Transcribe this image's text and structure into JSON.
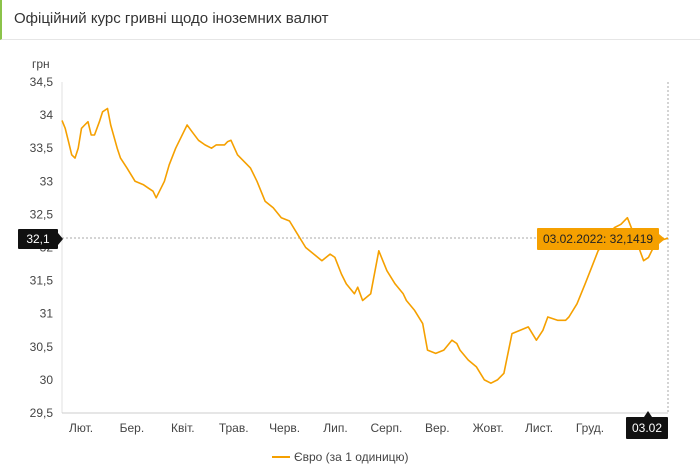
{
  "page": {
    "title": "Офіційний курс гривні щодо іноземних валют"
  },
  "chart_data": {
    "type": "line",
    "ylabel": "грн",
    "ylim": [
      29.5,
      34.5
    ],
    "y_ticks": [
      "29,5",
      "30",
      "30,5",
      "31",
      "31,5",
      "32",
      "32,5",
      "33",
      "33,5",
      "34",
      "34,5"
    ],
    "x_labels": [
      "Лют.",
      "Бер.",
      "Квіт.",
      "Трав.",
      "Черв.",
      "Лип.",
      "Серп.",
      "Вер.",
      "Жовт.",
      "Лист.",
      "Груд."
    ],
    "x_last_label": "03.02",
    "series": [
      {
        "name": "Євро (за 1 одиницю)",
        "color": "#f5a000",
        "x_day": [
          0,
          2,
          4,
          6,
          8,
          10,
          12,
          14,
          16,
          18,
          20,
          23,
          25,
          28,
          30,
          34,
          36,
          40,
          45,
          50,
          53,
          56,
          58,
          63,
          66,
          70,
          75,
          77,
          80,
          84,
          88,
          92,
          95,
          100,
          102,
          104,
          108,
          112,
          116,
          120,
          125,
          130,
          135,
          140,
          145,
          150,
          155,
          160,
          165,
          168,
          172,
          175,
          180,
          182,
          185,
          190,
          195,
          200,
          205,
          210,
          212,
          217,
          222,
          225,
          230,
          235,
          240,
          243,
          245,
          250,
          255,
          260,
          264,
          268,
          272,
          277,
          282,
          287,
          292,
          296,
          299,
          305,
          310,
          312,
          317,
          322,
          326,
          330,
          335,
          340,
          344,
          348,
          352,
          355,
          358,
          361,
          366,
          370,
          373
        ],
        "values": [
          33.92,
          33.8,
          33.6,
          33.4,
          33.35,
          33.5,
          33.8,
          33.85,
          33.9,
          33.7,
          33.7,
          33.9,
          34.05,
          34.1,
          33.85,
          33.5,
          33.35,
          33.2,
          33.0,
          32.95,
          32.9,
          32.85,
          32.75,
          33.0,
          33.25,
          33.5,
          33.75,
          33.85,
          33.75,
          33.62,
          33.55,
          33.5,
          33.55,
          33.55,
          33.6,
          33.62,
          33.4,
          33.3,
          33.2,
          33.0,
          32.7,
          32.6,
          32.45,
          32.4,
          32.2,
          32.0,
          31.9,
          31.8,
          31.9,
          31.85,
          31.6,
          31.45,
          31.3,
          31.4,
          31.2,
          31.3,
          31.95,
          31.65,
          31.45,
          31.3,
          31.2,
          31.05,
          30.85,
          30.45,
          30.4,
          30.45,
          30.6,
          30.55,
          30.45,
          30.3,
          30.2,
          30.0,
          29.95,
          30.0,
          30.1,
          30.7,
          30.75,
          30.8,
          30.6,
          30.75,
          30.95,
          30.9,
          30.9,
          30.95,
          31.15,
          31.45,
          31.7,
          31.95,
          32.1,
          32.3,
          32.35,
          32.45,
          32.2,
          32.0,
          31.8,
          31.85,
          32.1,
          32.12,
          32.14
        ]
      }
    ],
    "tooltip": "03.02.2022: 32,1419",
    "current_value_label": "32,1",
    "legend": "Євро (за 1 одиницю)",
    "grid": false,
    "legend_position": "bottom"
  }
}
